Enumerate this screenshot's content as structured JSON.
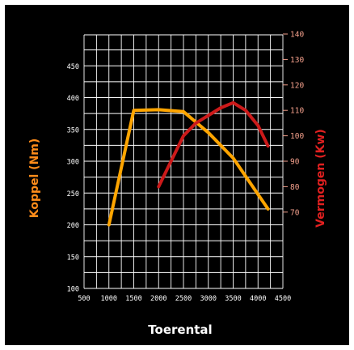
{
  "chart_data": {
    "type": "line",
    "xlabel": "Toerental",
    "ylabel_left": "Koppel (Nm)",
    "ylabel_right": "Vermogen (Kw)",
    "x_ticks": [
      500,
      1000,
      1500,
      2000,
      2500,
      3000,
      3500,
      4000,
      4500
    ],
    "y_left_ticks": [
      100,
      150,
      200,
      250,
      300,
      350,
      400,
      450
    ],
    "y_right_ticks": [
      70,
      80,
      90,
      100,
      110,
      120,
      130,
      140
    ],
    "xlim": [
      500,
      4500
    ],
    "ylim_left": [
      100,
      500
    ],
    "ylim_right": [
      40,
      140
    ],
    "grid": true,
    "colors": {
      "background": "#000000",
      "grid": "#ffffff",
      "torque": "#ffa500",
      "power": "#cc1a1a",
      "left_axis_label": "#ff8c1a",
      "right_axis_label": "#e02020",
      "right_ticks": "#f4a08c"
    },
    "series": [
      {
        "axis": "left",
        "points": [
          [
            1000,
            200
          ],
          [
            1500,
            380
          ],
          [
            2000,
            381
          ],
          [
            2500,
            378
          ],
          [
            3000,
            345
          ],
          [
            3500,
            305
          ],
          [
            4200,
            225
          ]
        ]
      },
      {
        "axis": "right",
        "points": [
          [
            2000,
            80
          ],
          [
            2500,
            100
          ],
          [
            2750,
            105
          ],
          [
            3000,
            108
          ],
          [
            3250,
            111
          ],
          [
            3500,
            113
          ],
          [
            3750,
            110
          ],
          [
            4000,
            104
          ],
          [
            4200,
            96
          ]
        ]
      }
    ]
  }
}
